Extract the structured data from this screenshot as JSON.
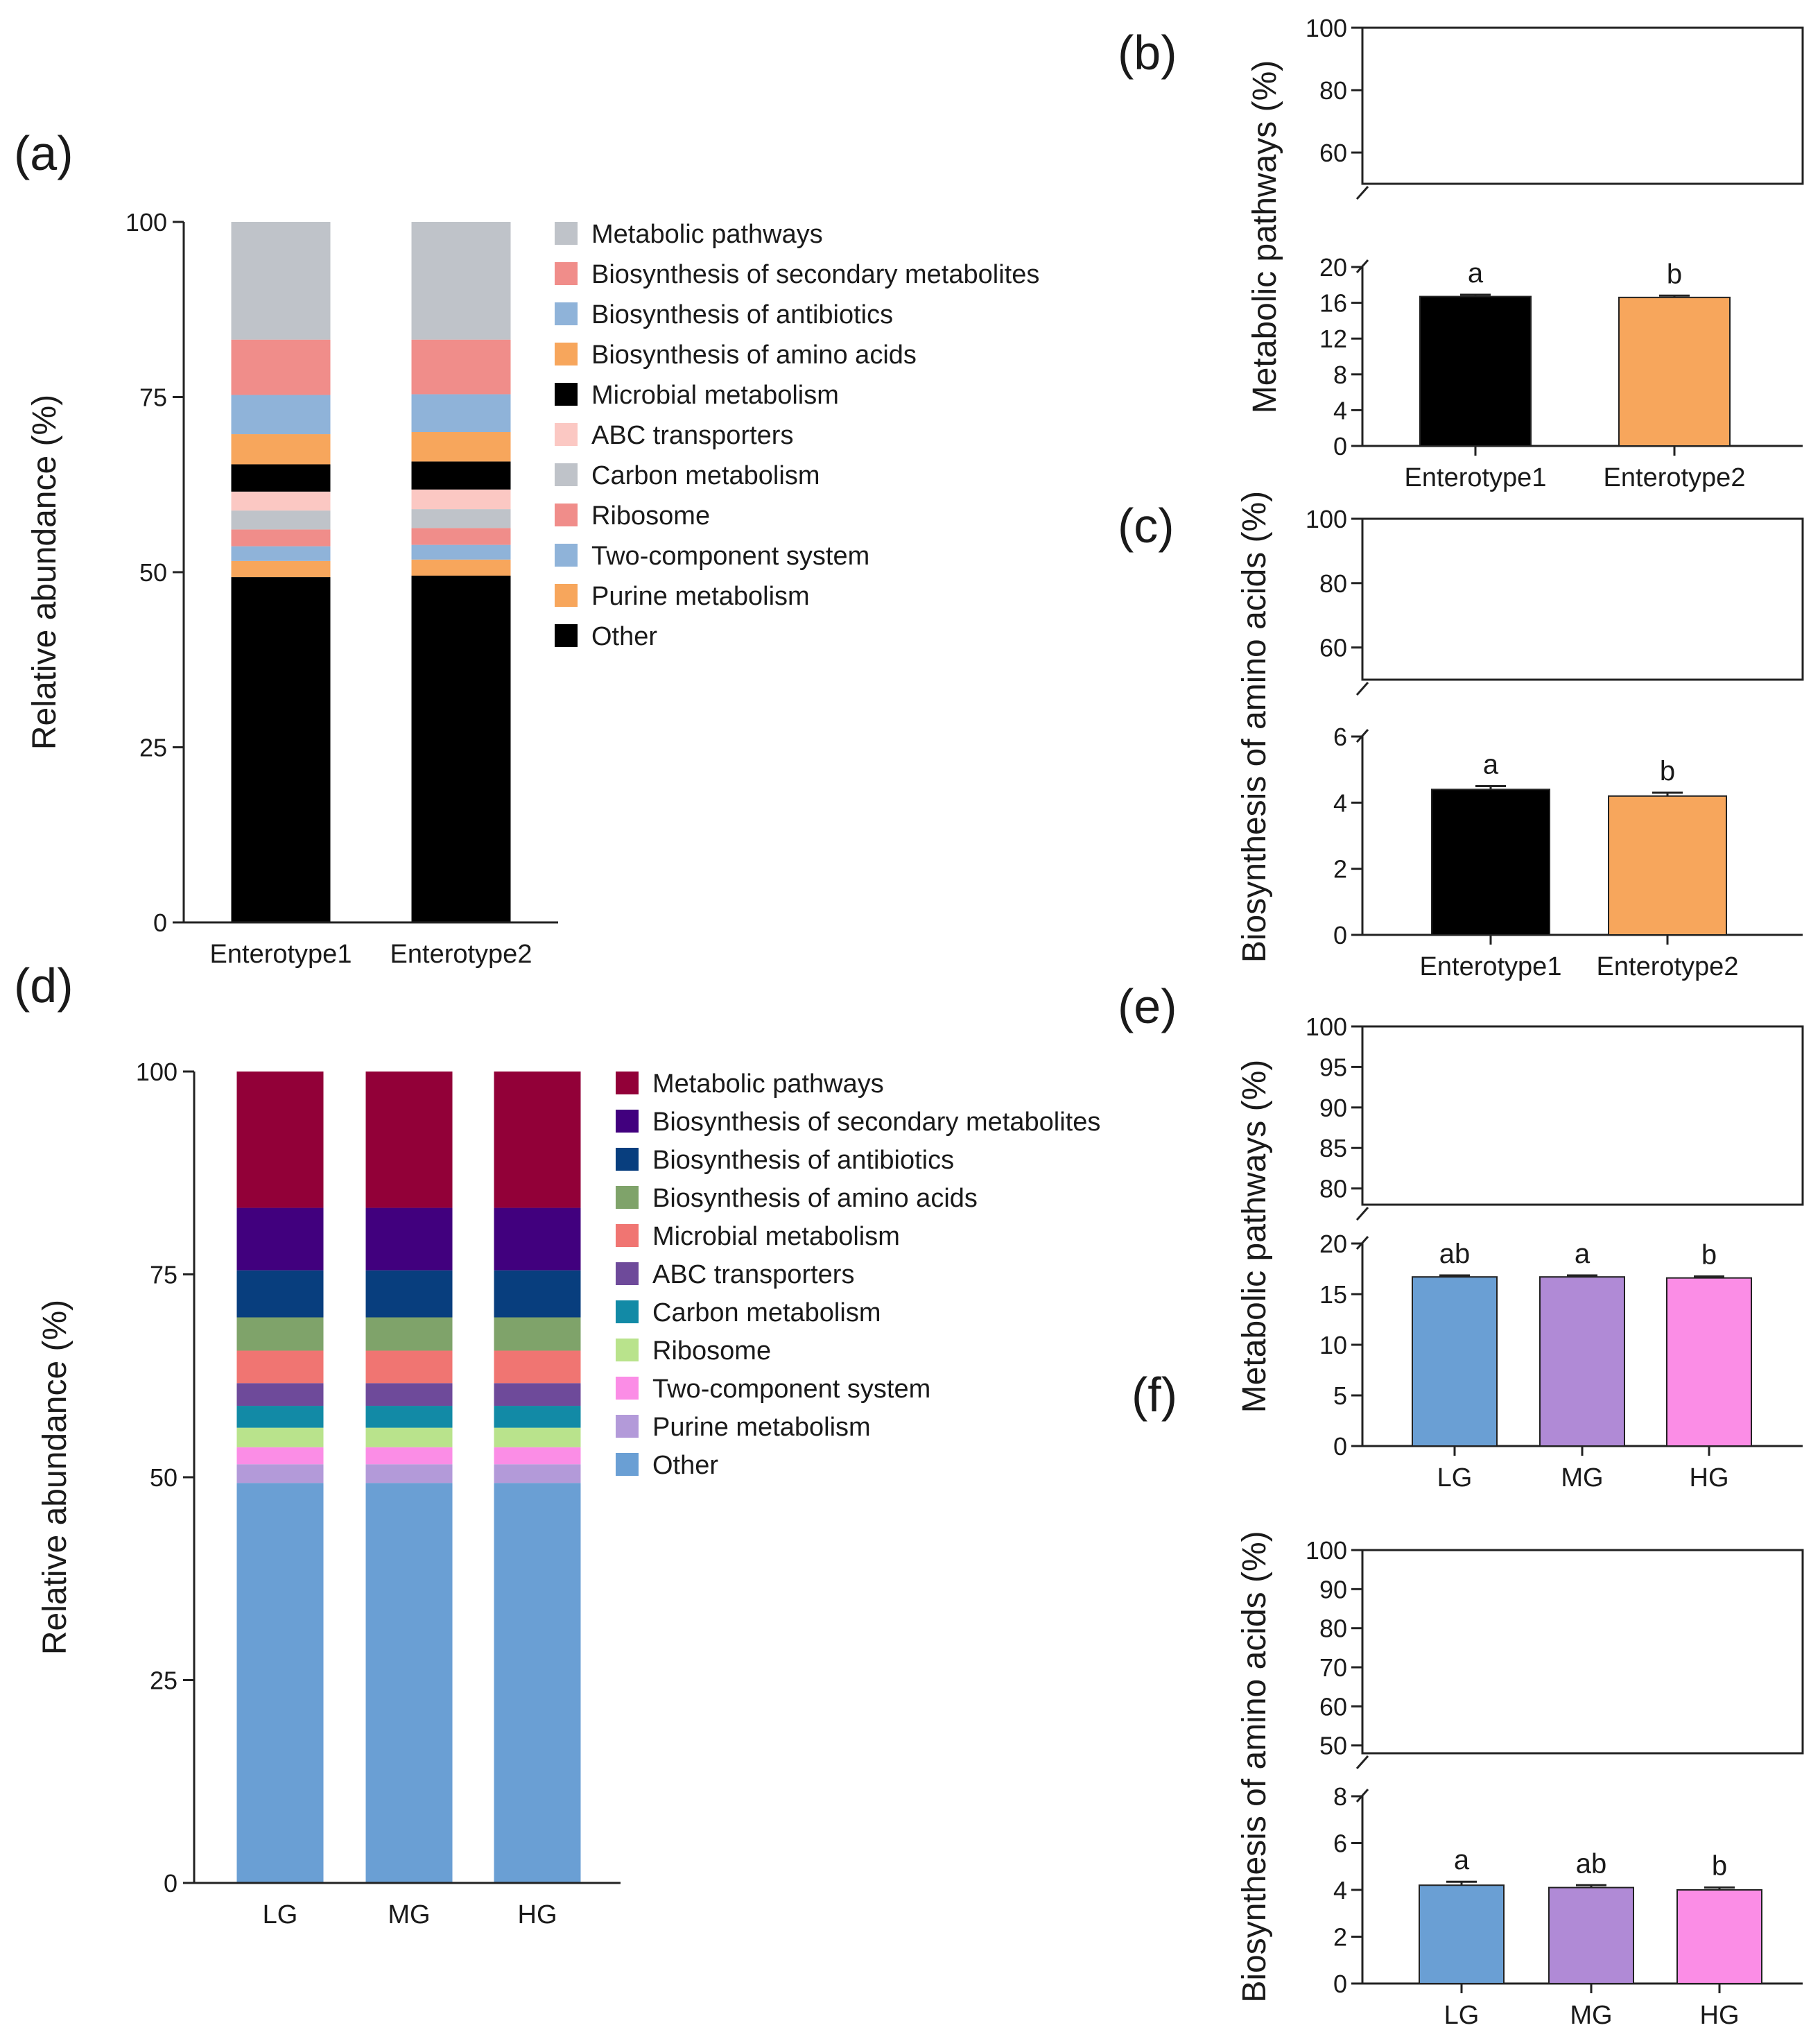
{
  "chart_data": [
    {
      "id": "a",
      "panel_label": "(a)",
      "type": "bar",
      "stacked": true,
      "title": "",
      "ylabel": "Relative abundance (%)",
      "xlabel": "",
      "ylim": [
        0,
        100
      ],
      "yticks": [
        "0",
        "25",
        "50",
        "75",
        "100"
      ],
      "categories": [
        "Enterotype1",
        "Enterotype2"
      ],
      "series": [
        {
          "name": "Other",
          "color": "#000000",
          "values": [
            49.3,
            49.5
          ]
        },
        {
          "name": "Purine metabolism",
          "color": "#f7a65c",
          "values": [
            2.3,
            2.3
          ]
        },
        {
          "name": "Two-component system",
          "color": "#8fb3d9",
          "values": [
            2.1,
            2.1
          ]
        },
        {
          "name": "Ribosome",
          "color": "#f08d8a",
          "values": [
            2.4,
            2.4
          ]
        },
        {
          "name": "Carbon metabolism",
          "color": "#bfc3c9",
          "values": [
            2.7,
            2.7
          ]
        },
        {
          "name": "ABC transporters",
          "color": "#fbc8c3",
          "values": [
            2.7,
            2.8
          ]
        },
        {
          "name": "Microbial metabolism",
          "color": "#000000",
          "values": [
            3.9,
            4.0
          ]
        },
        {
          "name": "Biosynthesis of amino acids",
          "color": "#f7a65c",
          "values": [
            4.3,
            4.2
          ]
        },
        {
          "name": "Biosynthesis of antibiotics",
          "color": "#8fb3d9",
          "values": [
            5.6,
            5.4
          ]
        },
        {
          "name": "Biosynthesis of secondary metabolites",
          "color": "#f08d8a",
          "values": [
            7.9,
            7.8
          ]
        },
        {
          "name": "Metabolic pathways",
          "color": "#bfc3c9",
          "values": [
            16.8,
            16.8
          ]
        }
      ]
    },
    {
      "id": "b",
      "panel_label": "(b)",
      "type": "bar",
      "broken_axis": true,
      "ylabel": "Metabolic pathways (%)",
      "ylim_upper": [
        50,
        100
      ],
      "yticks_upper": [
        "60",
        "80",
        "100"
      ],
      "ylim_lower": [
        0,
        20
      ],
      "yticks_lower": [
        "0",
        "4",
        "8",
        "12",
        "16",
        "20"
      ],
      "categories": [
        "Enterotype1",
        "Enterotype2"
      ],
      "values": [
        16.7,
        16.6
      ],
      "errors": [
        0.2,
        0.2
      ],
      "colors": [
        "#000000",
        "#f7a65c"
      ],
      "significance": [
        "a",
        "b"
      ]
    },
    {
      "id": "c",
      "panel_label": "(c)",
      "type": "bar",
      "broken_axis": true,
      "ylabel": "Biosynthesis of amino acids (%)",
      "ylim_upper": [
        50,
        100
      ],
      "yticks_upper": [
        "60",
        "80",
        "100"
      ],
      "ylim_lower": [
        0,
        6
      ],
      "yticks_lower": [
        "0",
        "2",
        "4",
        "6"
      ],
      "categories": [
        "Enterotype1",
        "Enterotype2"
      ],
      "values": [
        4.4,
        4.2
      ],
      "errors": [
        0.1,
        0.1
      ],
      "colors": [
        "#000000",
        "#f7a65c"
      ],
      "significance": [
        "a",
        "b"
      ]
    },
    {
      "id": "d",
      "panel_label": "(d)",
      "type": "bar",
      "stacked": true,
      "title": "",
      "ylabel": "Relative abundance (%)",
      "xlabel": "",
      "ylim": [
        0,
        100
      ],
      "yticks": [
        "0",
        "25",
        "50",
        "75",
        "100"
      ],
      "categories": [
        "LG",
        "MG",
        "HG"
      ],
      "series": [
        {
          "name": "Other",
          "color": "#6a9fd4",
          "values": [
            49.3,
            49.3,
            49.3
          ]
        },
        {
          "name": "Purine metabolism",
          "color": "#b39ad9",
          "values": [
            2.3,
            2.3,
            2.3
          ]
        },
        {
          "name": "Two-component system",
          "color": "#fb8de6",
          "values": [
            2.1,
            2.1,
            2.1
          ]
        },
        {
          "name": "Ribosome",
          "color": "#b9e38c",
          "values": [
            2.4,
            2.4,
            2.4
          ]
        },
        {
          "name": "Carbon metabolism",
          "color": "#128aa6",
          "values": [
            2.7,
            2.7,
            2.7
          ]
        },
        {
          "name": "ABC transporters",
          "color": "#6e4a9a",
          "values": [
            2.8,
            2.8,
            2.8
          ]
        },
        {
          "name": "Microbial metabolism",
          "color": "#f07572",
          "values": [
            4.0,
            4.0,
            4.0
          ]
        },
        {
          "name": "Biosynthesis of amino acids",
          "color": "#7fa36a",
          "values": [
            4.1,
            4.1,
            4.1
          ]
        },
        {
          "name": "Biosynthesis of antibiotics",
          "color": "#083e7e",
          "values": [
            5.8,
            5.8,
            5.8
          ]
        },
        {
          "name": "Biosynthesis of secondary metabolites",
          "color": "#41007e",
          "values": [
            7.7,
            7.7,
            7.7
          ]
        },
        {
          "name": "Metabolic pathways",
          "color": "#920038",
          "values": [
            16.8,
            16.8,
            16.8
          ]
        }
      ]
    },
    {
      "id": "e",
      "panel_label": "(e)",
      "type": "bar",
      "broken_axis": true,
      "ylabel": "Metabolic pathways (%)",
      "ylim_upper": [
        78,
        100
      ],
      "yticks_upper": [
        "80",
        "85",
        "90",
        "95",
        "100"
      ],
      "ylim_lower": [
        0,
        20
      ],
      "yticks_lower": [
        "0",
        "5",
        "10",
        "15",
        "20"
      ],
      "categories": [
        "LG",
        "MG",
        "HG"
      ],
      "values": [
        16.7,
        16.7,
        16.6
      ],
      "errors": [
        0.15,
        0.15,
        0.15
      ],
      "colors": [
        "#6a9fd4",
        "#b08ad6",
        "#fb8de6"
      ],
      "significance": [
        "ab",
        "a",
        "b"
      ]
    },
    {
      "id": "f",
      "panel_label": "(f)",
      "type": "bar",
      "broken_axis": true,
      "ylabel": "Biosynthesis of amino acids (%)",
      "ylim_upper": [
        48,
        100
      ],
      "yticks_upper": [
        "50",
        "60",
        "70",
        "80",
        "90",
        "100"
      ],
      "ylim_lower": [
        0,
        8
      ],
      "yticks_lower": [
        "0",
        "2",
        "4",
        "6",
        "8"
      ],
      "categories": [
        "LG",
        "MG",
        "HG"
      ],
      "values": [
        4.2,
        4.1,
        4.0
      ],
      "errors": [
        0.15,
        0.1,
        0.1
      ],
      "colors": [
        "#6a9fd4",
        "#b08ad6",
        "#fb8de6"
      ],
      "significance": [
        "a",
        "ab",
        "b"
      ]
    }
  ]
}
